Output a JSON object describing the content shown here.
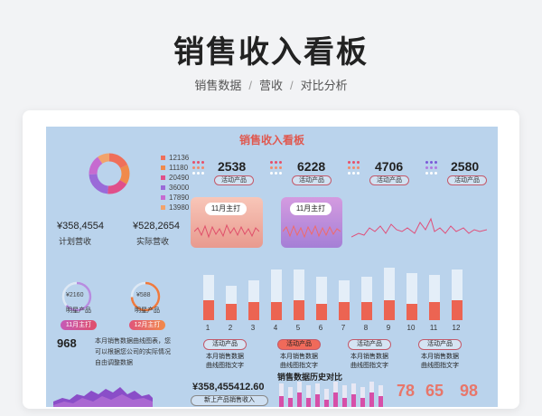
{
  "page": {
    "title": "销售收入看板",
    "nav": [
      "销售数据",
      "营收",
      "对比分析"
    ]
  },
  "dashboard": {
    "title": "销售收入看板",
    "legend": [
      {
        "value": "12136",
        "color": "#ef6f5a"
      },
      {
        "value": "11180",
        "color": "#f08a4b"
      },
      {
        "value": "20490",
        "color": "#e04f8a"
      },
      {
        "value": "36000",
        "color": "#9a6ad8"
      },
      {
        "value": "17890",
        "color": "#c66bd0"
      },
      {
        "value": "13980",
        "color": "#f2a36b"
      }
    ],
    "plan_revenue": {
      "value": "¥358,4554",
      "label": "计划营收"
    },
    "actual_revenue": {
      "value": "¥528,2654",
      "label": "实际营收"
    },
    "stats": [
      {
        "value": "2538",
        "label": "活动产品"
      },
      {
        "value": "6228",
        "label": "活动产品"
      },
      {
        "value": "4706",
        "label": "活动产品"
      },
      {
        "value": "2580",
        "label": "活动产品"
      }
    ],
    "panels": [
      {
        "tag": "11月主打"
      },
      {
        "tag": "11月主打"
      }
    ],
    "rings": [
      {
        "value": "¥2160",
        "label": "明星产品",
        "month": "11月主打"
      },
      {
        "value": "¥588",
        "label": "明星产品",
        "month": "12月主打"
      }
    ],
    "count": "968",
    "count_desc": [
      "本月销售数据曲线图表，您",
      "可以根据您公司的实际情况",
      "自由调整数据"
    ],
    "bars": {
      "labels": [
        "1",
        "2",
        "3",
        "4",
        "5",
        "6",
        "7",
        "8",
        "9",
        "10",
        "11",
        "12"
      ],
      "values": [
        0.55,
        0.45,
        0.5,
        0.5,
        0.55,
        0.45,
        0.5,
        0.5,
        0.55,
        0.45,
        0.5,
        0.55
      ]
    },
    "buttons": [
      "活动产品",
      "活动产品",
      "活动产品",
      "活动产品"
    ],
    "btn_desc": [
      "本月销售数据",
      "曲线图指文字"
    ],
    "new_revenue": {
      "value": "¥358,455412.60",
      "label": "新上产品销售收入"
    },
    "history_title": "销售数据历史对比",
    "big_numbers": [
      "78",
      "65",
      "98"
    ]
  }
}
